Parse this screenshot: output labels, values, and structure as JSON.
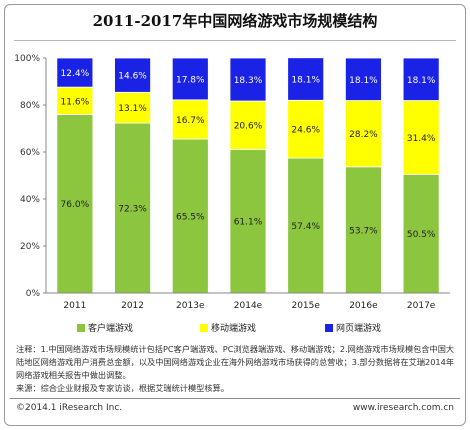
{
  "chart_data": {
    "type": "bar",
    "stacked": true,
    "percent_stacked": true,
    "title": "2011-2017年中国网络游戏市场规模结构",
    "categories": [
      "2011",
      "2012",
      "2013e",
      "2014e",
      "2015e",
      "2016e",
      "2017e"
    ],
    "series": [
      {
        "name": "客户端游戏",
        "color": "#8cc63f",
        "values": [
          76.0,
          72.3,
          65.5,
          61.1,
          57.4,
          53.7,
          50.5
        ],
        "labels": [
          "76.0%",
          "72.3%",
          "65.5%",
          "61.1%",
          "57.4%",
          "53.7%",
          "50.5%"
        ]
      },
      {
        "name": "移动端游戏",
        "color": "#ffff00",
        "values": [
          11.6,
          13.1,
          16.7,
          20.6,
          24.6,
          28.2,
          31.4
        ],
        "labels": [
          "11.6%",
          "13.1%",
          "16.7%",
          "20.6%",
          "24.6%",
          "28.2%",
          "31.4%"
        ]
      },
      {
        "name": "网页端游戏",
        "color": "#1a22e6",
        "values": [
          12.4,
          14.6,
          17.8,
          18.3,
          18.1,
          18.1,
          18.1
        ],
        "labels": [
          "12.4%",
          "14.6%",
          "17.8%",
          "18.3%",
          "18.1%",
          "18.1%",
          "18.1%"
        ]
      }
    ],
    "ylim": [
      0,
      100
    ],
    "yticks": [
      0,
      20,
      40,
      60,
      80,
      100
    ],
    "ytick_labels": [
      "0%",
      "20%",
      "40%",
      "60%",
      "80%",
      "100%"
    ],
    "grid": false,
    "legend_position": "bottom"
  },
  "notes": [
    "注释：1.中国网络游戏市场规模统计包括PC客户端游戏、PC浏览器端游戏、移动端游戏；2.网络游戏市场规模包含中国大陆地区网络游戏用户消费总金额，以及中国网络游戏企业在海外网络游戏市场获得的总营收；3.部分数据将在艾瑞2014年网络游戏相关报告中做出调整。",
    "来源：综合企业财报及专家访谈，根据艾瑞统计模型核算。"
  ],
  "footer": {
    "copyright": "©2014.1 iResearch Inc.",
    "website": "www.iresearch.com.cn"
  }
}
